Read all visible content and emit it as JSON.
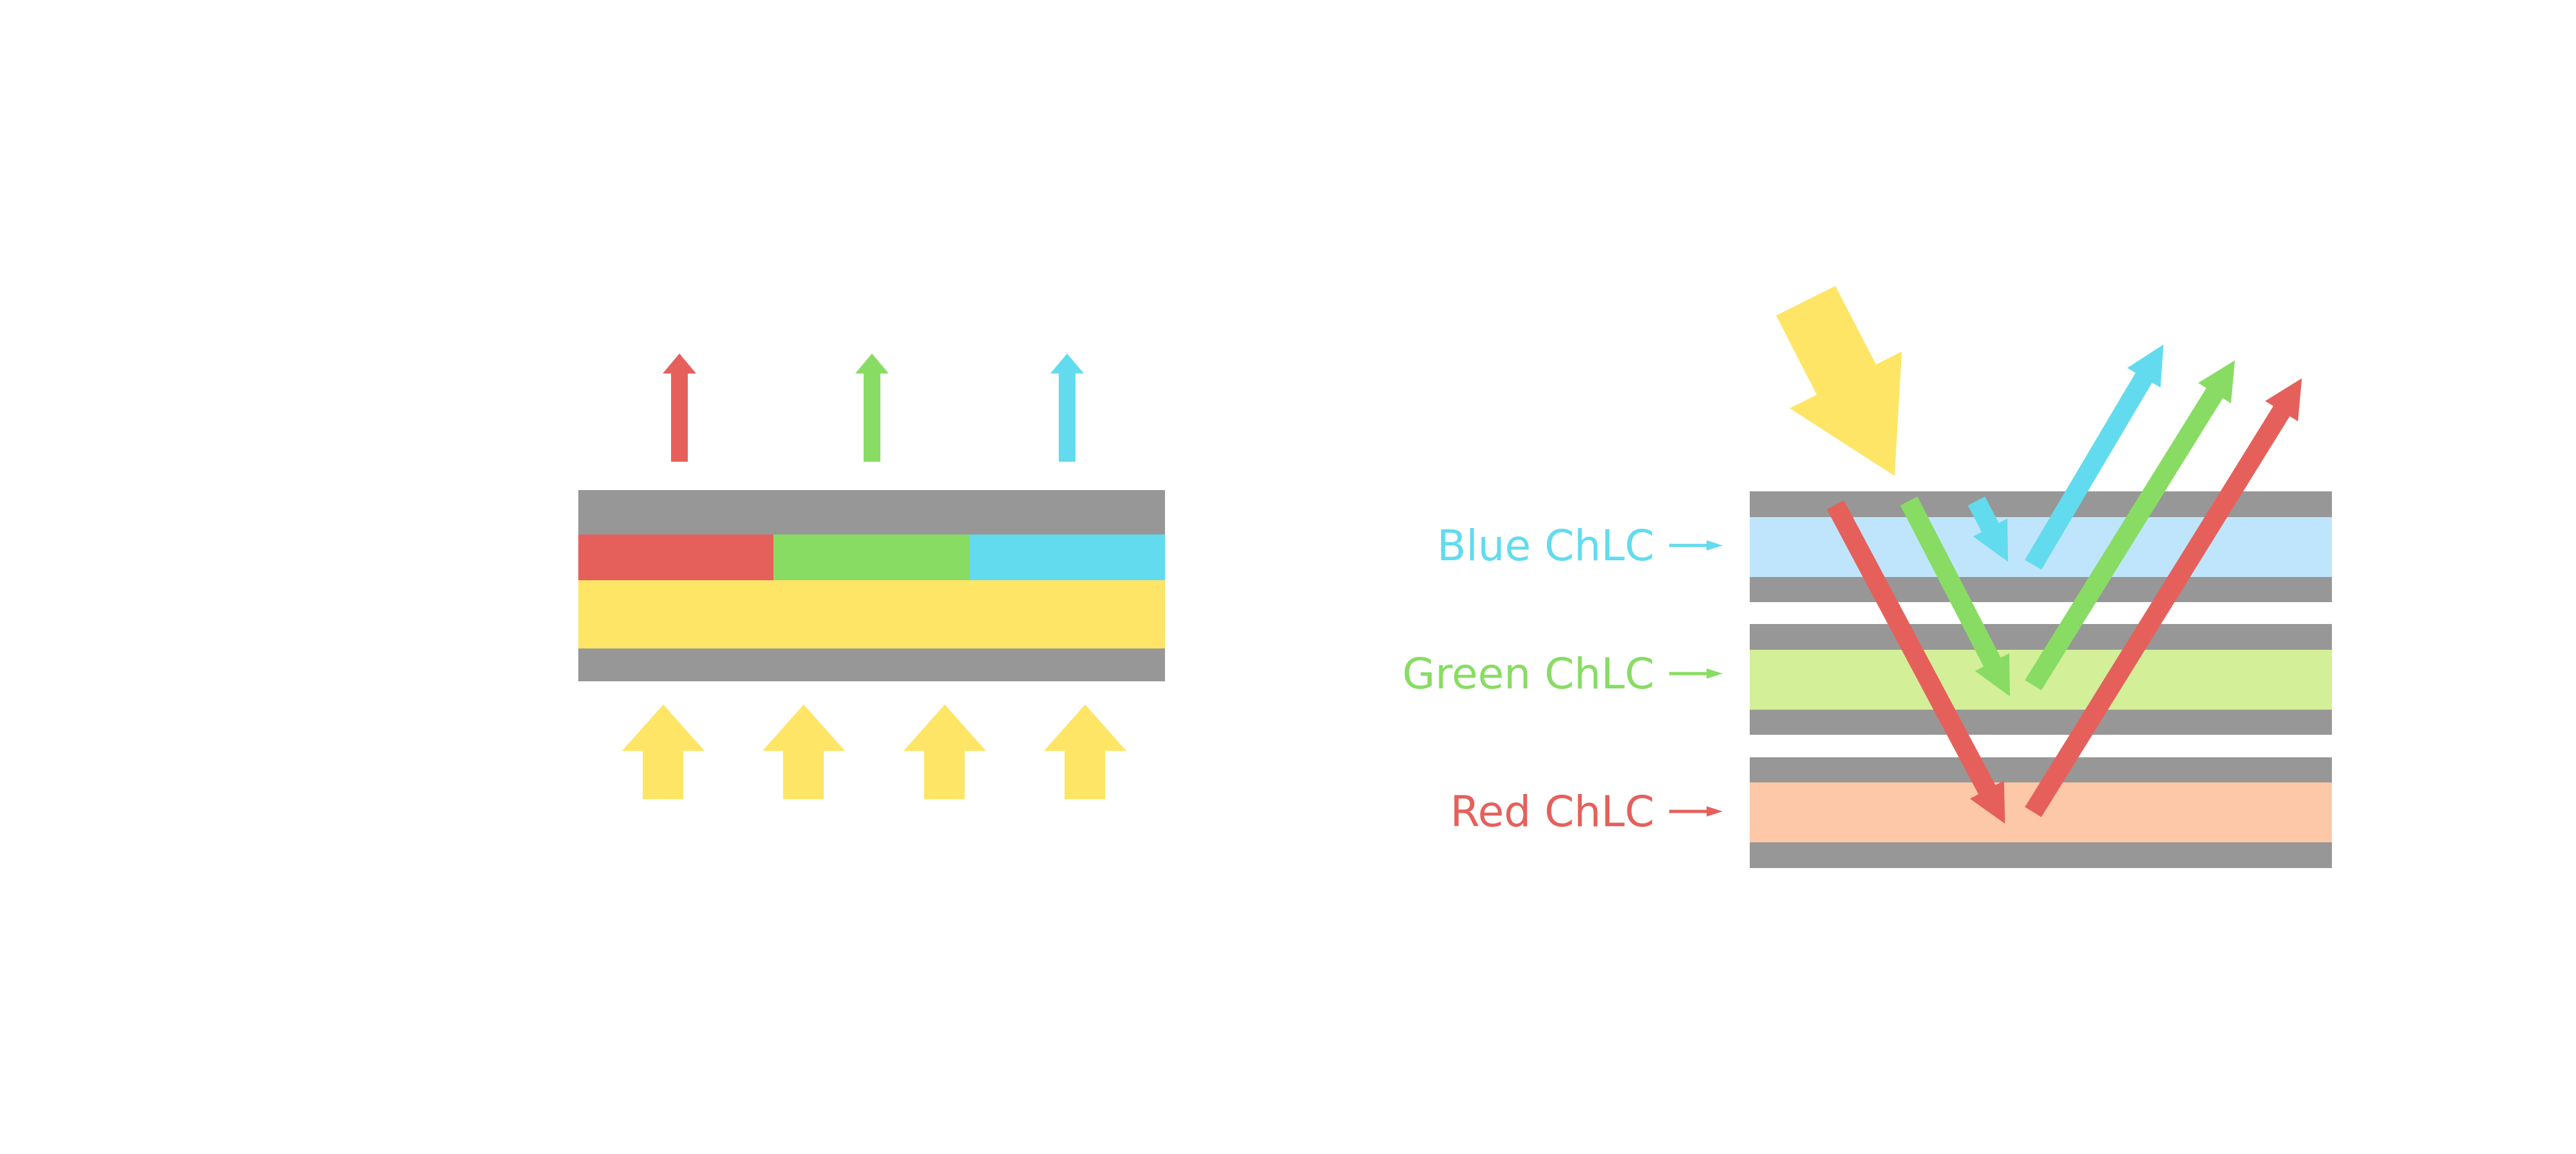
{
  "colors": {
    "substrate": "#979797",
    "red": "#e6605b",
    "green": "#88dc63",
    "blue": "#62dbee",
    "yellow": "#fee566",
    "blue_layer": "#bfe5fc",
    "green_layer": "#d3ef98",
    "red_layer": "#fdc8a8"
  },
  "right_diagram": {
    "labels": [
      {
        "text": "Blue ChLC",
        "color": "#62dbee"
      },
      {
        "text": "Green ChLC",
        "color": "#88dc63"
      },
      {
        "text": "Red ChLC",
        "color": "#e6605b"
      }
    ]
  }
}
